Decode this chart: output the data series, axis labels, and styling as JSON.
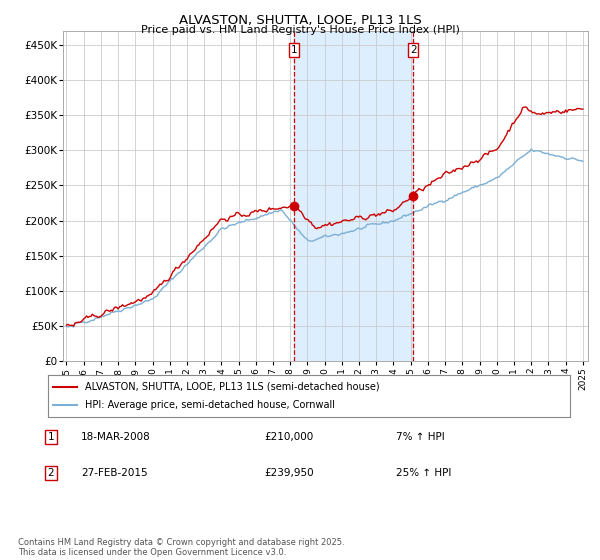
{
  "title": "ALVASTON, SHUTTA, LOOE, PL13 1LS",
  "subtitle": "Price paid vs. HM Land Registry's House Price Index (HPI)",
  "legend_line1": "ALVASTON, SHUTTA, LOOE, PL13 1LS (semi-detached house)",
  "legend_line2": "HPI: Average price, semi-detached house, Cornwall",
  "marker1_date": "18-MAR-2008",
  "marker1_price": "£210,000",
  "marker1_hpi": "7% ↑ HPI",
  "marker2_date": "27-FEB-2015",
  "marker2_price": "£239,950",
  "marker2_hpi": "25% ↑ HPI",
  "footnote": "Contains HM Land Registry data © Crown copyright and database right 2025.\nThis data is licensed under the Open Government Licence v3.0.",
  "red_color": "#cc0000",
  "blue_color": "#7bafd4",
  "shade_color": "#ddeeff",
  "background_color": "#ffffff",
  "grid_color": "#cccccc",
  "ylim": [
    0,
    470000
  ],
  "yticks": [
    0,
    50000,
    100000,
    150000,
    200000,
    250000,
    300000,
    350000,
    400000,
    450000
  ],
  "marker1_x": 2008.21,
  "marker2_x": 2015.15
}
